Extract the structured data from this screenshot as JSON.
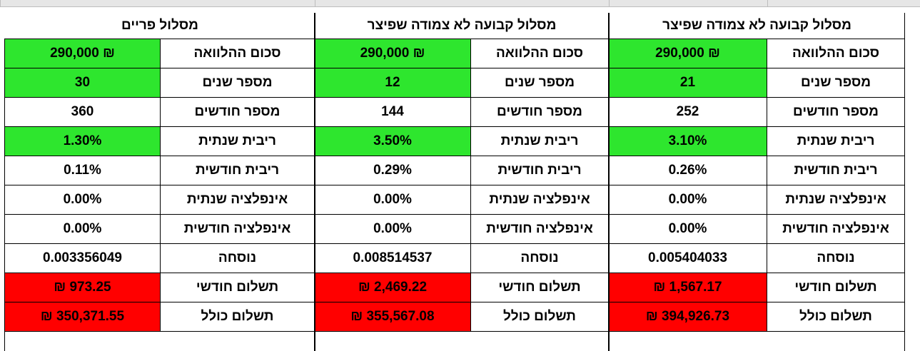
{
  "blocks": [
    {
      "title": "מסלול קבועה לא צמודה שפיצר",
      "rows": [
        {
          "label": "סכום ההלוואה",
          "value": "290,000 ₪",
          "color": "#2ee62e"
        },
        {
          "label": "מספר שנים",
          "value": "21",
          "color": "#2ee62e"
        },
        {
          "label": "מספר חודשים",
          "value": "252"
        },
        {
          "label": "ריבית שנתית",
          "value": "3.10%",
          "color": "#2ee62e"
        },
        {
          "label": "ריבית חודשית",
          "value": "0.26%"
        },
        {
          "label": "אינפלציה שנתית",
          "value": "0.00%"
        },
        {
          "label": "אינפלציה חודשית",
          "value": "0.00%"
        },
        {
          "label": "נוסחה",
          "value": "0.005404033"
        },
        {
          "label": "תשלום חודשי",
          "value": "₪ 1,567.17",
          "color": "#ff0000"
        },
        {
          "label": "תשלום כולל",
          "value": "₪ 394,926.73",
          "color": "#ff0000"
        }
      ]
    },
    {
      "title": "מסלול קבועה לא צמודה שפיצר",
      "rows": [
        {
          "label": "סכום ההלוואה",
          "value": "290,000 ₪",
          "color": "#2ee62e"
        },
        {
          "label": "מספר שנים",
          "value": "12",
          "color": "#2ee62e"
        },
        {
          "label": "מספר חודשים",
          "value": "144"
        },
        {
          "label": "ריבית שנתית",
          "value": "3.50%",
          "color": "#2ee62e"
        },
        {
          "label": "ריבית חודשית",
          "value": "0.29%"
        },
        {
          "label": "אינפלציה שנתית",
          "value": "0.00%"
        },
        {
          "label": "אינפלציה חודשית",
          "value": "0.00%"
        },
        {
          "label": "נוסחה",
          "value": "0.008514537"
        },
        {
          "label": "תשלום חודשי",
          "value": "₪ 2,469.22",
          "color": "#ff0000"
        },
        {
          "label": "תשלום כולל",
          "value": "₪ 355,567.08",
          "color": "#ff0000"
        }
      ]
    },
    {
      "title": "מסלול פריים",
      "rows": [
        {
          "label": "סכום ההלוואה",
          "value": "290,000 ₪",
          "color": "#2ee62e"
        },
        {
          "label": "מספר שנים",
          "value": "30",
          "color": "#2ee62e"
        },
        {
          "label": "מספר חודשים",
          "value": "360"
        },
        {
          "label": "ריבית שנתית",
          "value": "1.30%",
          "color": "#2ee62e"
        },
        {
          "label": "ריבית חודשית",
          "value": "0.11%"
        },
        {
          "label": "אינפלציה שנתית",
          "value": "0.00%"
        },
        {
          "label": "אינפלציה חודשית",
          "value": "0.00%"
        },
        {
          "label": "נוסחה",
          "value": "0.003356049"
        },
        {
          "label": "תשלום חודשי",
          "value": "₪ 973.25",
          "color": "#ff0000"
        },
        {
          "label": "תשלום כולל",
          "value": "₪ 350,371.55",
          "color": "#ff0000"
        }
      ]
    }
  ]
}
